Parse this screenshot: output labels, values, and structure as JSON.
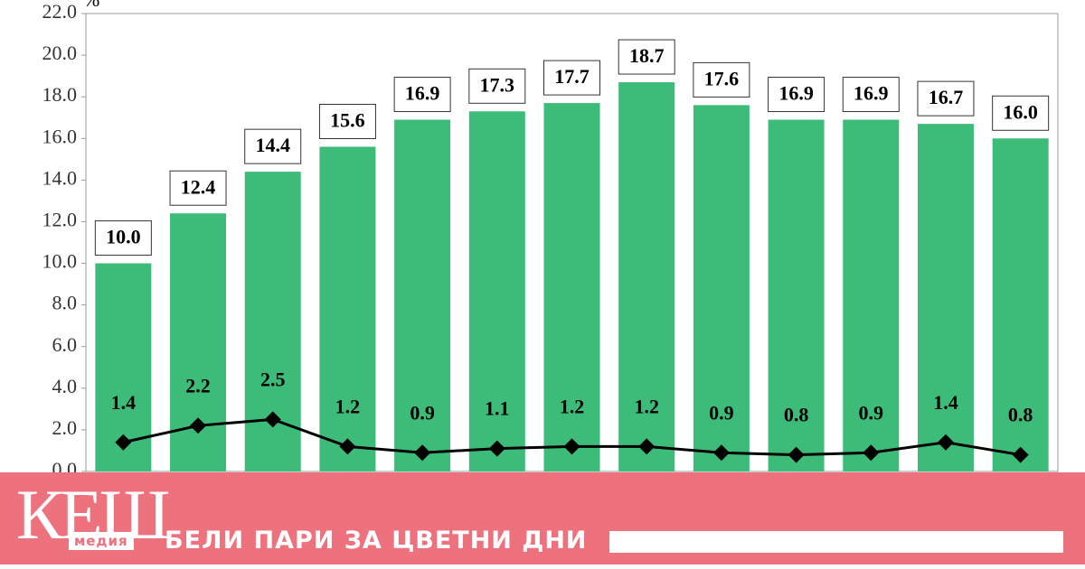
{
  "chart_data": {
    "type": "bar",
    "y_label": "%",
    "categories": [
      null,
      null,
      null,
      null,
      null,
      null,
      null,
      null,
      null,
      null,
      null,
      null,
      null
    ],
    "series": [
      {
        "type": "bar",
        "color": "#3dbb78",
        "values": [
          10.0,
          12.4,
          14.4,
          15.6,
          16.9,
          17.3,
          17.7,
          18.7,
          17.6,
          16.9,
          16.9,
          16.7,
          16.0
        ],
        "value_labels": [
          "10.0",
          "12.4",
          "14.4",
          "15.6",
          "16.9",
          "17.3",
          "17.7",
          "18.7",
          "17.6",
          "16.9",
          "16.9",
          "16.7",
          "16.0"
        ]
      },
      {
        "type": "line",
        "color": "#000000",
        "values": [
          1.4,
          2.2,
          2.5,
          1.2,
          0.9,
          1.1,
          1.2,
          1.2,
          0.9,
          0.8,
          0.9,
          1.4,
          0.8
        ]
      }
    ],
    "ylim": [
      0,
      22
    ],
    "yticks": [
      {
        "value": 0,
        "label": "0.0"
      },
      {
        "value": 2,
        "label": "2.0"
      },
      {
        "value": 4,
        "label": "4.0"
      },
      {
        "value": 6,
        "label": "6.0"
      },
      {
        "value": 8,
        "label": "8.0"
      },
      {
        "value": 10,
        "label": "10.0"
      },
      {
        "value": 12,
        "label": "12.0"
      },
      {
        "value": 14,
        "label": "14.0"
      },
      {
        "value": 16,
        "label": "16.0"
      },
      {
        "value": 18,
        "label": "18.0"
      },
      {
        "value": 20,
        "label": "20.0"
      },
      {
        "value": 22,
        "label": "22.0"
      }
    ],
    "grid": false
  },
  "banner": {
    "logo": "КЕШ",
    "logo_sub": "медия",
    "slogan": "БЕЛИ ПАРИ ЗА ЦВЕТНИ ДНИ"
  }
}
